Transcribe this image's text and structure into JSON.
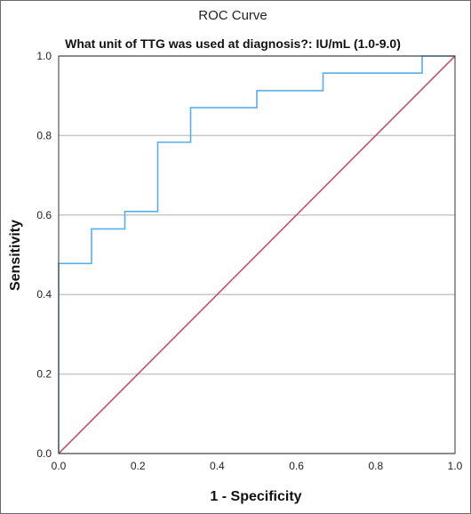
{
  "chart_data": {
    "type": "line",
    "title": "ROC Curve",
    "subtitle": "What unit of TTG was used at diagnosis?: IU/mL (1.0-9.0)",
    "xlabel": "1 - Specificity",
    "ylabel": "Sensitivity",
    "xlim": [
      0.0,
      1.0
    ],
    "ylim": [
      0.0,
      1.0
    ],
    "x_ticks": [
      "0.0",
      "0.2",
      "0.4",
      "0.6",
      "0.8",
      "1.0"
    ],
    "y_ticks": [
      "0.0",
      "0.2",
      "0.4",
      "0.6",
      "0.8",
      "1.0"
    ],
    "grid": "horizontal",
    "series": [
      {
        "color": "#5aaee8",
        "x": [
          0.0,
          0.0,
          0.083,
          0.083,
          0.167,
          0.167,
          0.25,
          0.25,
          0.333,
          0.333,
          0.5,
          0.5,
          0.667,
          0.667,
          0.917,
          0.917,
          1.0
        ],
        "y": [
          0.0,
          0.478,
          0.478,
          0.565,
          0.565,
          0.609,
          0.609,
          0.783,
          0.783,
          0.87,
          0.87,
          0.913,
          0.913,
          0.957,
          0.957,
          1.0,
          1.0
        ]
      },
      {
        "color": "#c05070",
        "x": [
          0.0,
          1.0
        ],
        "y": [
          0.0,
          1.0
        ]
      }
    ]
  }
}
